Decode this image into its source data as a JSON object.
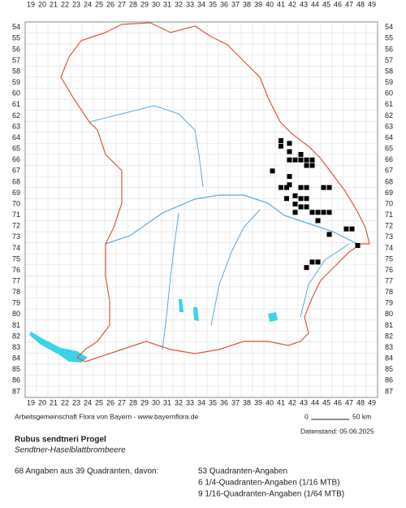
{
  "grid": {
    "columns": [
      19,
      20,
      21,
      22,
      23,
      24,
      25,
      26,
      27,
      28,
      29,
      30,
      31,
      32,
      33,
      34,
      35,
      36,
      37,
      38,
      39,
      40,
      41,
      42,
      43,
      44,
      45,
      46,
      47,
      48,
      49
    ],
    "rows": [
      54,
      55,
      56,
      57,
      58,
      59,
      60,
      61,
      62,
      63,
      64,
      65,
      66,
      67,
      68,
      69,
      70,
      71,
      72,
      73,
      74,
      75,
      76,
      77,
      78,
      79,
      80,
      81,
      82,
      83,
      84,
      85,
      86,
      87
    ]
  },
  "occurrences": [
    [
      41,
      64.25
    ],
    [
      41,
      64.75
    ],
    [
      41.75,
      64.5
    ],
    [
      41.75,
      65.25
    ],
    [
      41.75,
      66
    ],
    [
      42.75,
      65.5
    ],
    [
      42.25,
      66
    ],
    [
      42.75,
      66
    ],
    [
      43.25,
      66
    ],
    [
      43.75,
      66
    ],
    [
      43.25,
      66.5
    ],
    [
      43.75,
      66.5
    ],
    [
      40.25,
      67
    ],
    [
      41.75,
      67.5
    ],
    [
      41.75,
      68.25
    ],
    [
      41,
      68.5
    ],
    [
      41.5,
      68.5
    ],
    [
      42.75,
      68.5
    ],
    [
      43.25,
      68.5
    ],
    [
      41.5,
      69.5
    ],
    [
      42.25,
      69.25
    ],
    [
      42.75,
      69.5
    ],
    [
      43.25,
      69.5
    ],
    [
      42.25,
      70
    ],
    [
      42.75,
      70.25
    ],
    [
      43.25,
      70.25
    ],
    [
      42.25,
      70.75
    ],
    [
      43.75,
      70.75
    ],
    [
      44.25,
      70.75
    ],
    [
      44.75,
      68.5
    ],
    [
      45.25,
      68.5
    ],
    [
      44.75,
      70.75
    ],
    [
      45.25,
      70.75
    ],
    [
      44.25,
      71.5
    ],
    [
      45.25,
      72.75
    ],
    [
      46.75,
      72.25
    ],
    [
      47.25,
      72.25
    ],
    [
      47.75,
      73.75
    ],
    [
      43.75,
      75.25
    ],
    [
      44.25,
      75.25
    ],
    [
      43.25,
      75.75
    ]
  ],
  "credit": "Arbeitsgemeinschaft Flora von Bayern - www.bayernflora.de",
  "scale": {
    "start": "0",
    "end": "50 km"
  },
  "date": "Datenstand: 05.06.2025",
  "species": "Rubus sendtneri Progel",
  "common_name": "Sendtner-Haselblattbrombeere",
  "summary": "68 Angaben aus 39 Quadranten, davon:",
  "breakdown": [
    "53 Quadranten-Angaben",
    "6 1/4-Quadranten-Angaben (1/16 MTB)",
    "9 1/16-Quadranten-Angaben (1/64 MTB)"
  ]
}
